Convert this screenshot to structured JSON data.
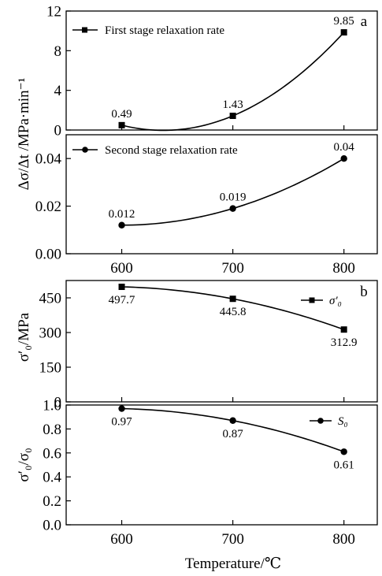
{
  "chart_data": [
    {
      "type": "line",
      "panel_letter": "a",
      "legend": "First stage relaxation rate",
      "marker": "square",
      "x": [
        600,
        700,
        800
      ],
      "values": [
        0.49,
        1.43,
        9.85
      ],
      "labels": [
        "0.49",
        "1.43",
        "9.85"
      ],
      "ylim": [
        0,
        12
      ],
      "yticks": [
        "0",
        "4",
        "8",
        "12"
      ],
      "ytick_values": [
        0,
        4,
        8,
        12
      ],
      "legend_position": "top-left"
    },
    {
      "type": "line",
      "legend": "Second stage relaxation rate",
      "marker": "circle",
      "x": [
        600,
        700,
        800
      ],
      "values": [
        0.012,
        0.019,
        0.04
      ],
      "labels": [
        "0.012",
        "0.019",
        "0.04"
      ],
      "ylim": [
        0,
        0.05
      ],
      "yticks": [
        "0.00",
        "0.02",
        "0.04"
      ],
      "ytick_values": [
        0,
        0.02,
        0.04
      ],
      "xticks": [
        "600",
        "700",
        "800"
      ],
      "legend_position": "top-left"
    },
    {
      "type": "line",
      "panel_letter": "b",
      "legend": "σ′₀",
      "marker": "square",
      "x": [
        600,
        700,
        800
      ],
      "values": [
        497.7,
        445.8,
        312.9
      ],
      "labels": [
        "497.7",
        "445.8",
        "312.9"
      ],
      "ylim": [
        0,
        525
      ],
      "yticks": [
        "0",
        "150",
        "300",
        "450"
      ],
      "ytick_values": [
        0,
        150,
        300,
        450
      ],
      "legend_position": "top-right"
    },
    {
      "type": "line",
      "legend": "S₀",
      "marker": "circle",
      "x": [
        600,
        700,
        800
      ],
      "values": [
        0.97,
        0.87,
        0.61
      ],
      "labels": [
        "0.97",
        "0.87",
        "0.61"
      ],
      "ylim": [
        0,
        1.0
      ],
      "yticks": [
        "0.0",
        "0.2",
        "0.4",
        "0.6",
        "0.8",
        "1.0"
      ],
      "ytick_values": [
        0,
        0.2,
        0.4,
        0.6,
        0.8,
        1.0
      ],
      "xticks": [
        "600",
        "700",
        "800"
      ],
      "legend_position": "top-right"
    }
  ],
  "axis_labels": {
    "a_ylabel": "Δσ/Δt /MPa·min⁻¹",
    "b_ylabel_top": "σ′₀/MPa",
    "b_ylabel_bottom": "σ′₀/σ₀",
    "xlabel": "Temperature/℃"
  }
}
